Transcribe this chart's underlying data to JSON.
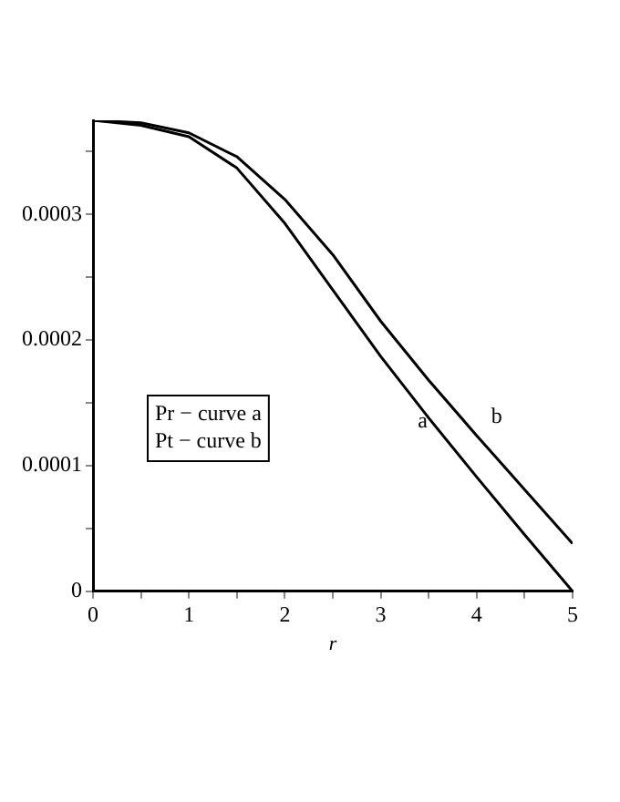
{
  "chart_data": {
    "type": "line",
    "xlabel": "r",
    "x": [
      0,
      0.5,
      1,
      1.5,
      2,
      2.5,
      3,
      3.5,
      4,
      4.5,
      5
    ],
    "series": [
      {
        "name": "a",
        "color": "#000000",
        "values": [
          0.000375,
          0.000371,
          0.000362,
          0.000337,
          0.000293,
          0.00024,
          0.000187,
          0.000138,
          9.1e-05,
          4.5e-05,
          0
        ]
      },
      {
        "name": "b",
        "color": "#000000",
        "values": [
          0.000375,
          0.000373,
          0.000365,
          0.000346,
          0.000312,
          0.000268,
          0.000215,
          0.000168,
          0.000124,
          8.1e-05,
          3.8e-05
        ]
      }
    ],
    "xlim": [
      0,
      5
    ],
    "xticks": [
      0,
      {
        "value": 0.5,
        "label": null
      },
      1,
      {
        "value": 1.5,
        "label": null
      },
      2,
      {
        "value": 2.5,
        "label": null
      },
      3,
      {
        "value": 3.5,
        "label": null
      },
      4,
      {
        "value": 4.5,
        "label": null
      },
      5
    ],
    "ylim": [
      0,
      0.000375
    ],
    "yticks": [
      0,
      {
        "value": 5e-05,
        "label": null
      },
      {
        "value": 0.0001,
        "label": "0.0001"
      },
      {
        "value": 0.00015,
        "label": null
      },
      {
        "value": 0.0002,
        "label": "0.0002"
      },
      {
        "value": 0.00025,
        "label": null
      },
      {
        "value": 0.0003,
        "label": "0.0003"
      },
      {
        "value": 0.00035,
        "label": null
      }
    ],
    "annotations": [
      "Pr − curve a",
      "Pt − curve b"
    ],
    "grid": false,
    "legend": false,
    "marker": "none",
    "line_style": "solid"
  }
}
